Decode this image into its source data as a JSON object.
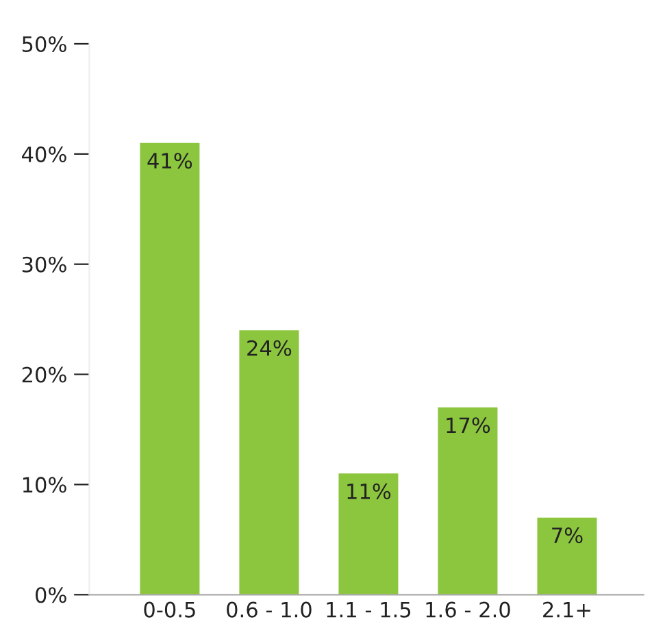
{
  "chart_data": {
    "type": "bar",
    "categories": [
      "0-0.5",
      "0.6 - 1.0",
      "1.1 - 1.5",
      "1.6 - 2.0",
      "2.1+"
    ],
    "values": [
      41,
      24,
      11,
      17,
      7
    ],
    "value_labels": [
      "41%",
      "24%",
      "11%",
      "17%",
      "7%"
    ],
    "color": "#8cc63f",
    "ylim": [
      0,
      50
    ],
    "yticks": [
      {
        "value": 0,
        "label": "0%"
      },
      {
        "value": 10,
        "label": "10%"
      },
      {
        "value": 20,
        "label": "20%"
      },
      {
        "value": 30,
        "label": "30%"
      },
      {
        "value": 40,
        "label": "40%"
      },
      {
        "value": 50,
        "label": "50%"
      }
    ],
    "grid": false
  }
}
